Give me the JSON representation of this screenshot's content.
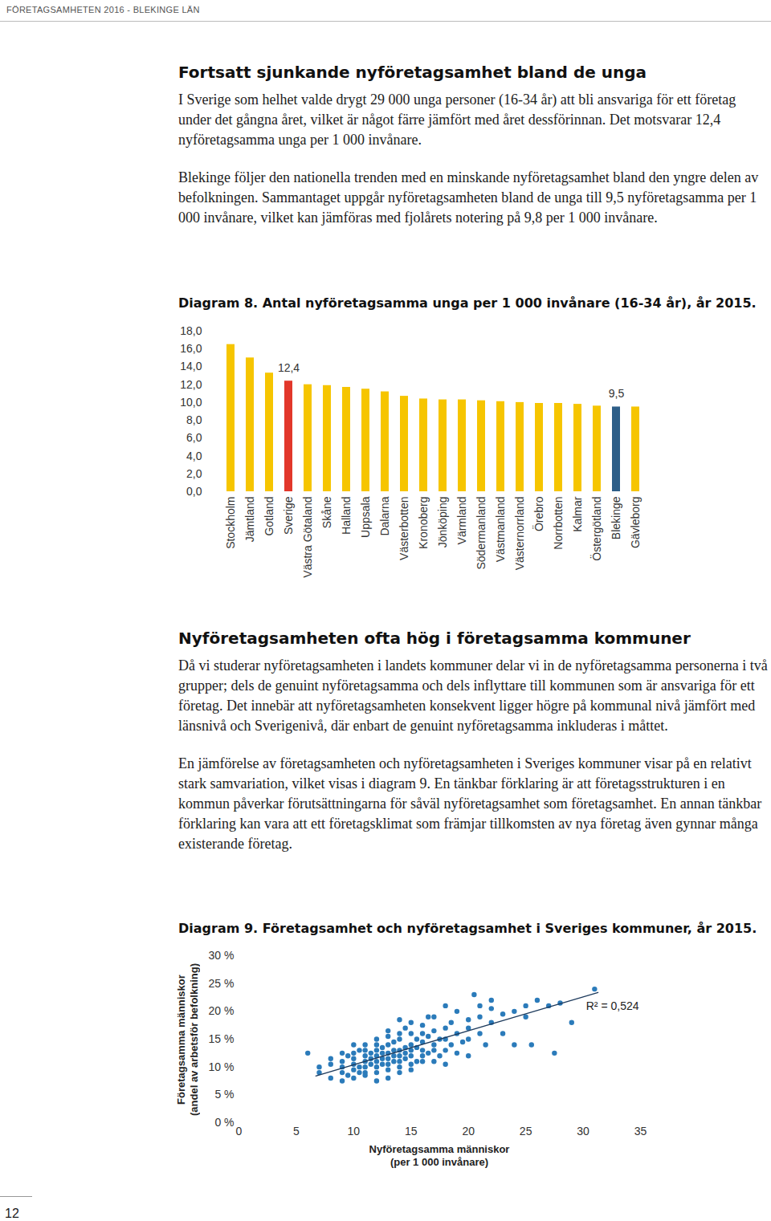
{
  "header": "FÖRETAGSAMHETEN 2016 - BLEKINGE LÄN",
  "sections": [
    {
      "heading": "Fortsatt sjunkande nyföretagsamhet bland de unga",
      "paragraphs": [
        "I Sverige som helhet valde drygt 29 000 unga personer (16-34 år) att bli ansvariga för ett företag under det gångna året, vilket är något färre jämfört med året dessförinnan. Det motsvarar 12,4 nyföretagsamma unga per 1 000 invånare.",
        "Blekinge följer den nationella trenden med en minskande nyföretagsamhet bland den yngre delen av befolkningen. Sammantaget uppgår nyföretagsamheten bland de unga till 9,5 nyföretagsamma per 1 000 invånare, vilket kan jämföras med fjolårets notering på 9,8 per 1 000 invånare."
      ]
    },
    {
      "heading": "Nyföretagsamheten ofta hög i företagsamma kommuner",
      "paragraphs": [
        "Då vi studerar nyföretagsamheten i landets kommuner delar vi in de nyföretagsamma personerna i två grupper; dels de genuint nyföretagsamma och dels inflyttare till kommunen som är ansvariga för ett företag. Det innebär att nyföretagsamheten konsekvent ligger högre på kommunal nivå jämfört med länsnivå och Sverigenivå, där enbart de genuint nyföretagsamma inkluderas i måttet.",
        "En jämförelse av företagsamheten och nyföretagsamheten i Sveriges kommuner visar på en relativt stark samvariation, vilket visas i diagram 9. En tänkbar förklaring är att företagsstrukturen i en kommun påverkar förutsättningarna för såväl nyföretagsamhet som företagsamhet. En annan tänkbar förklaring kan vara att ett företagsklimat som främjar tillkomsten av nya företag även gynnar många existerande företag."
      ]
    }
  ],
  "chart_data": [
    {
      "type": "bar",
      "title": "Diagram 8. Antal nyföretagsamma unga per 1 000 invånare (16-34 år), år 2015.",
      "categories": [
        "Stockholm",
        "Jämtland",
        "Gotland",
        "Sverige",
        "Västra Götaland",
        "Skåne",
        "Halland",
        "Uppsala",
        "Dalarna",
        "Västerbotten",
        "Kronoberg",
        "Jönköping",
        "Värmland",
        "Södermanland",
        "Västmanland",
        "Västernorrland",
        "Örebro",
        "Norrbotten",
        "Kalmar",
        "Östergötland",
        "Blekinge",
        "Gävleborg"
      ],
      "values": [
        16.5,
        15.0,
        13.3,
        12.4,
        12.0,
        11.9,
        11.7,
        11.5,
        11.2,
        10.7,
        10.4,
        10.3,
        10.3,
        10.2,
        10.1,
        10.0,
        9.9,
        9.9,
        9.8,
        9.6,
        9.5,
        9.5
      ],
      "value_labels": [
        null,
        null,
        null,
        "12,4",
        null,
        null,
        null,
        null,
        null,
        null,
        null,
        null,
        null,
        null,
        null,
        null,
        null,
        null,
        null,
        null,
        "9,5",
        null
      ],
      "colors": [
        "#f6c500",
        "#f6c500",
        "#f6c500",
        "#e2372b",
        "#f6c500",
        "#f6c500",
        "#f6c500",
        "#f6c500",
        "#f6c500",
        "#f6c500",
        "#f6c500",
        "#f6c500",
        "#f6c500",
        "#f6c500",
        "#f6c500",
        "#f6c500",
        "#f6c500",
        "#f6c500",
        "#f6c500",
        "#f6c500",
        "#2d5e88",
        "#f6c500"
      ],
      "ylim": [
        0,
        18
      ],
      "yticks": [
        {
          "value": 0,
          "label": "0,0"
        },
        {
          "value": 2,
          "label": "2,0"
        },
        {
          "value": 4,
          "label": "4,0"
        },
        {
          "value": 6,
          "label": "6,0"
        },
        {
          "value": 8,
          "label": "8,0"
        },
        {
          "value": 10,
          "label": "10,0"
        },
        {
          "value": 12,
          "label": "12,0"
        },
        {
          "value": 14,
          "label": "14,0"
        },
        {
          "value": 16,
          "label": "16,0"
        },
        {
          "value": 18,
          "label": "18,0"
        }
      ],
      "grid": false
    },
    {
      "type": "scatter",
      "title": "Diagram 9. Företagsamhet och nyföretagsamhet i Sveriges kommuner, år 2015.",
      "x_label": "Nyföretagsamma människor\n(per 1 000 invånare)",
      "y_label": "Företagsamma människor\n(andel av arbetsför befolkning)",
      "x": [
        6,
        7,
        7,
        8,
        8,
        8,
        9,
        9,
        9,
        9,
        9.5,
        9.5,
        10,
        10,
        10,
        10,
        10,
        10.5,
        10.5,
        10.5,
        11,
        11,
        11,
        11,
        11,
        11,
        11,
        11.5,
        11.5,
        11.5,
        12,
        12,
        12,
        12,
        12,
        12,
        12,
        12,
        12.5,
        12.5,
        12.5,
        12.5,
        13,
        13,
        13,
        13,
        13,
        13,
        13,
        13,
        13.5,
        13.5,
        13.5,
        13.5,
        14,
        14,
        14,
        14,
        14,
        14,
        14,
        14.5,
        14.5,
        14.5,
        14.5,
        15,
        15,
        15,
        15,
        15,
        15,
        15,
        15.5,
        15.5,
        15.5,
        16,
        16,
        16,
        16,
        16,
        16,
        16.5,
        16.5,
        17,
        17,
        17,
        17,
        17,
        17.5,
        17.5,
        18,
        18,
        18,
        18,
        18.5,
        18.5,
        19,
        19,
        19,
        19.5,
        20,
        20,
        20,
        20,
        21,
        21,
        21,
        21.5,
        22,
        22,
        22,
        23,
        23,
        24,
        24,
        25,
        25,
        25.5,
        26,
        27,
        27.5,
        28,
        29,
        31,
        20.5,
        18,
        16.5,
        14,
        10,
        9
      ],
      "values": [
        12.5,
        10,
        9,
        8,
        10.5,
        11.5,
        9,
        10,
        11,
        7.5,
        12,
        8.5,
        9.5,
        10.5,
        11.5,
        12.5,
        8,
        10,
        13,
        9,
        10,
        11,
        12,
        13,
        9,
        8.5,
        14,
        10.5,
        11.5,
        12.5,
        9,
        10,
        11,
        12,
        13,
        14,
        15,
        7.5,
        10.5,
        12.5,
        11.5,
        13.5,
        9.5,
        10.5,
        11.5,
        12.5,
        14,
        15.5,
        16.5,
        8,
        11,
        12,
        13,
        14.5,
        10,
        11,
        12,
        13,
        15,
        16,
        9,
        12.5,
        13.5,
        11.5,
        17,
        10.5,
        12,
        13,
        14,
        16,
        18,
        9.5,
        11,
        13.5,
        15,
        11,
        12,
        13,
        14.5,
        16,
        17.5,
        12.5,
        15.5,
        13,
        14,
        11,
        16.5,
        19,
        12,
        15,
        13,
        15,
        17,
        10.5,
        14,
        18,
        12.5,
        16,
        20,
        14.5,
        15,
        17,
        18.5,
        12,
        16,
        19,
        21,
        14,
        18,
        20.5,
        22,
        16,
        19.5,
        14,
        20,
        21,
        19,
        14,
        22,
        21,
        12.5,
        21.5,
        18,
        24,
        23,
        21,
        19,
        18.5,
        14,
        12.5
      ],
      "color": "#2b7bba",
      "marker": "circle",
      "trend_line": {
        "x": [
          6.7,
          31.3
        ],
        "values": [
          8.4,
          23.4
        ],
        "color": "#1d3a5c"
      },
      "annotations": [
        {
          "text": "R² = 0,524"
        }
      ],
      "xlim": [
        0,
        35
      ],
      "xticks": [
        0,
        5,
        10,
        15,
        20,
        25,
        30,
        35
      ],
      "ylim": [
        0,
        30
      ],
      "yticks": [
        {
          "value": 0,
          "label": "0 %"
        },
        {
          "value": 5,
          "label": "5 %"
        },
        {
          "value": 10,
          "label": "10 %"
        },
        {
          "value": 15,
          "label": "15 %"
        },
        {
          "value": 20,
          "label": "20 %"
        },
        {
          "value": 25,
          "label": "25 %"
        },
        {
          "value": 30,
          "label": "30 %"
        }
      ],
      "grid": false
    }
  ],
  "page_number": "12"
}
